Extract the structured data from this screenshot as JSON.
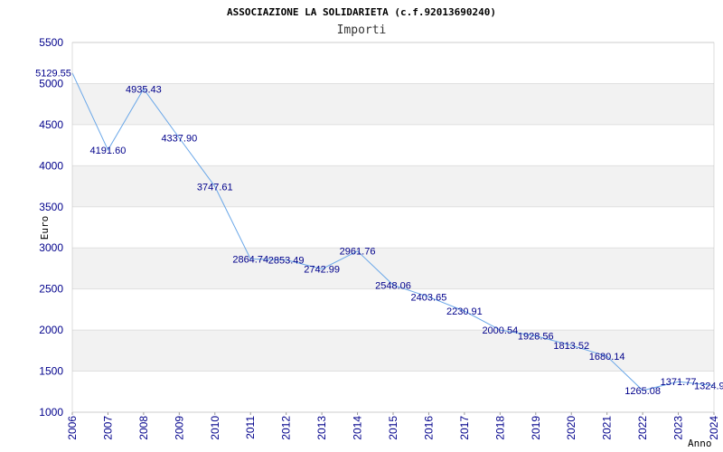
{
  "chart_data": {
    "type": "line",
    "title": "ASSOCIAZIONE LA SOLIDARIETA (c.f.92013690240)",
    "subtitle": "Importi",
    "xlabel": "Anno",
    "ylabel": "Euro",
    "ylim": [
      1000,
      5500
    ],
    "yticks": [
      1000,
      1500,
      2000,
      2500,
      3000,
      3500,
      4000,
      4500,
      5000,
      5500
    ],
    "x": [
      "2006",
      "2007",
      "2008",
      "2009",
      "2010",
      "2011",
      "2012",
      "2013",
      "2014",
      "2015",
      "2016",
      "2017",
      "2018",
      "2019",
      "2020",
      "2021",
      "2022",
      "2023",
      "2024"
    ],
    "values": [
      5129.55,
      4191.6,
      4935.43,
      4337.9,
      3747.61,
      2864.74,
      2853.49,
      2742.99,
      2961.76,
      2548.06,
      2403.65,
      2230.91,
      2000.54,
      1928.56,
      1813.52,
      1680.14,
      1265.08,
      1371.77,
      1324.9
    ],
    "labels": [
      "5129.55",
      "4191.60",
      "4935.43",
      "4337.90",
      "3747.61",
      "2864.74",
      "2853.49",
      "2742.99",
      "2961.76",
      "2548.06",
      "2403.65",
      "2230.91",
      "2000.54",
      "1928.56",
      "1813.52",
      "1680.14",
      "1265.08",
      "1371.77",
      "1324.9"
    ],
    "line_color": "#6aa7e8",
    "band_color": "#f2f2f2",
    "tick_color": "#00008b"
  }
}
